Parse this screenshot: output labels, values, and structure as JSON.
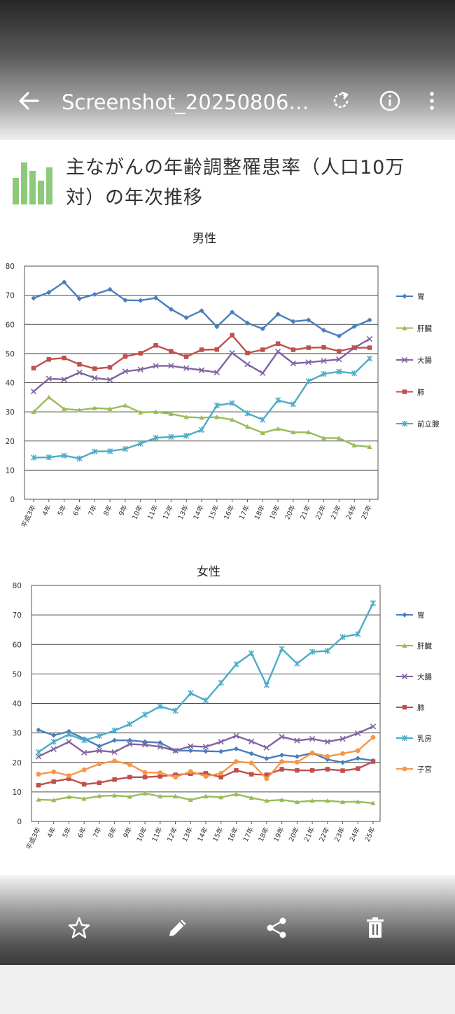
{
  "viewer": {
    "file_name": "Screenshot_20250806-…",
    "icons": [
      "back-arrow-icon",
      "rotate-icon",
      "info-icon",
      "more-vert-icon",
      "star-icon",
      "edit-pencil-icon",
      "share-icon",
      "trash-icon"
    ]
  },
  "page": {
    "title": "主ながんの年齢調整罹患率（人口10万対）の年次推移"
  },
  "chart_data": [
    {
      "type": "line",
      "title": "男性",
      "xlabel": "",
      "ylabel": "",
      "ylim": [
        0,
        80
      ],
      "yticks": [
        0,
        10,
        20,
        30,
        40,
        50,
        60,
        70,
        80
      ],
      "grid": true,
      "legend": "right",
      "categories": [
        "平成3年",
        "4年",
        "5年",
        "6年",
        "7年",
        "8年",
        "9年",
        "10年",
        "11年",
        "12年",
        "13年",
        "14年",
        "15年",
        "16年",
        "17年",
        "18年",
        "19年",
        "20年",
        "21年",
        "22年",
        "23年",
        "24年",
        "25年"
      ],
      "series": [
        {
          "name": "胃",
          "color": "#4a7ebb",
          "marker": "diamond",
          "values": [
            69,
            71,
            74.5,
            68.8,
            70.3,
            72,
            68.3,
            68.2,
            69.1,
            65.2,
            62.3,
            64.7,
            59.2,
            64.2,
            60.5,
            58.5,
            63.5,
            61,
            61.5,
            58,
            56,
            59.3,
            61.5
          ]
        },
        {
          "name": "肝臓",
          "color": "#9bbb59",
          "marker": "triangle",
          "values": [
            30,
            35,
            31,
            30.6,
            31.3,
            31,
            32.2,
            29.8,
            30,
            29.3,
            28.2,
            28,
            28.2,
            27.3,
            24.9,
            22.8,
            24.2,
            23,
            23,
            21,
            21,
            18.5,
            18
          ]
        },
        {
          "name": "大腸",
          "color": "#8064a2",
          "marker": "x",
          "values": [
            37,
            41.4,
            41.1,
            43.5,
            41.6,
            41,
            43.9,
            44.5,
            45.8,
            45.8,
            45,
            44.3,
            43.5,
            50.2,
            46.3,
            43.3,
            50.7,
            46.6,
            47,
            47.5,
            48,
            52,
            55
          ]
        },
        {
          "name": "肺",
          "color": "#c0504d",
          "marker": "square",
          "values": [
            45,
            48,
            48.5,
            46.3,
            44.8,
            45.3,
            49,
            50.1,
            52.8,
            50.8,
            48.9,
            51.3,
            51.4,
            56.3,
            50.2,
            51.3,
            53.4,
            51.3,
            52,
            52.1,
            50.8,
            52,
            52
          ]
        },
        {
          "name": "前立腺",
          "color": "#4bacc6",
          "marker": "asterisk",
          "values": [
            14.3,
            14.4,
            15,
            14,
            16.4,
            16.5,
            17.3,
            19.1,
            21.1,
            21.4,
            21.8,
            23.8,
            32.2,
            33,
            29.5,
            27.3,
            34,
            32.6,
            40.5,
            43,
            43.8,
            43.2,
            48.3
          ]
        }
      ]
    },
    {
      "type": "line",
      "title": "女性",
      "xlabel": "",
      "ylabel": "",
      "ylim": [
        0,
        80
      ],
      "yticks": [
        0,
        10,
        20,
        30,
        40,
        50,
        60,
        70,
        80
      ],
      "grid": true,
      "legend": "right",
      "categories": [
        "平成3年",
        "4年",
        "5年",
        "6年",
        "7年",
        "8年",
        "9年",
        "10年",
        "11年",
        "12年",
        "13年",
        "14年",
        "15年",
        "16年",
        "17年",
        "18年",
        "19年",
        "20年",
        "21年",
        "22年",
        "23年",
        "24年",
        "25年"
      ],
      "series": [
        {
          "name": "胃",
          "color": "#4a7ebb",
          "marker": "diamond",
          "values": [
            31,
            29.2,
            30.5,
            28,
            25.5,
            27.5,
            27.5,
            27,
            26.7,
            24,
            24,
            23.8,
            23.7,
            24.6,
            23,
            21.3,
            22.5,
            22,
            23.2,
            21,
            20,
            21.4,
            20.6
          ]
        },
        {
          "name": "肝臓",
          "color": "#9bbb59",
          "marker": "triangle",
          "values": [
            7.4,
            7.2,
            8.3,
            7.7,
            8.6,
            8.8,
            8.4,
            9.5,
            8.5,
            8.5,
            7.3,
            8.5,
            8.2,
            9.2,
            8,
            7,
            7.3,
            6.6,
            7,
            7,
            6.6,
            6.7,
            6.2
          ]
        },
        {
          "name": "大腸",
          "color": "#8064a2",
          "marker": "x",
          "values": [
            22,
            24.5,
            27,
            23.3,
            24,
            23.5,
            26.2,
            26,
            25.3,
            24,
            25.5,
            25.3,
            27,
            29,
            27.1,
            25,
            28.7,
            27.4,
            28,
            27,
            28,
            29.9,
            32.2
          ]
        },
        {
          "name": "肺",
          "color": "#c0504d",
          "marker": "square",
          "values": [
            12.3,
            13.5,
            14.5,
            12.6,
            13.1,
            14.2,
            15,
            15,
            15.3,
            15.8,
            16.2,
            16.3,
            15,
            17.3,
            16,
            15.8,
            17.7,
            17.3,
            17.3,
            17.7,
            17.2,
            17.9,
            20.3
          ]
        },
        {
          "name": "乳房",
          "color": "#4bacc6",
          "marker": "asterisk",
          "values": [
            23.5,
            27,
            29.5,
            27.5,
            29,
            30.8,
            33,
            36.2,
            39,
            37.5,
            43.5,
            41,
            47,
            53.3,
            57,
            46.2,
            58.5,
            53.5,
            57.5,
            57.8,
            62.5,
            63.5,
            74
          ]
        },
        {
          "name": "子宮",
          "color": "#f79646",
          "marker": "circle",
          "values": [
            16,
            16.8,
            15.5,
            17.5,
            19.5,
            20.5,
            19.3,
            16.6,
            16.5,
            15,
            16.9,
            15.3,
            16.3,
            20.3,
            19.8,
            14.5,
            20.3,
            20.1,
            23.2,
            22,
            23,
            24,
            28.5
          ]
        }
      ]
    }
  ]
}
